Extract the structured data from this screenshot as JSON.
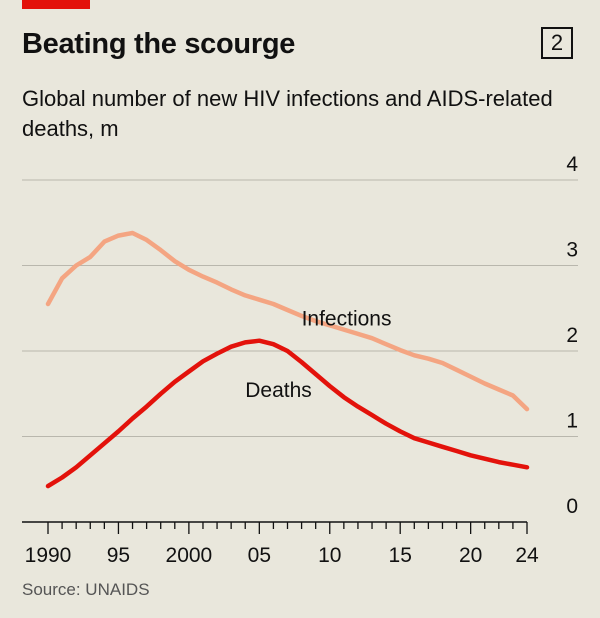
{
  "header": {
    "title": "Beating the scourge",
    "chart_number": "2",
    "subtitle": "Global number of new HIV infections and AIDS-related deaths, m",
    "source": "Source: UNAIDS",
    "accent_color": "#e3120b"
  },
  "chart_data": {
    "type": "line",
    "title": "Beating the scourge",
    "subtitle": "Global number of new HIV infections and AIDS-related deaths, m",
    "xlabel": "",
    "ylabel": "",
    "xlim": [
      1990,
      2024
    ],
    "ylim": [
      0,
      4
    ],
    "x_ticks": [
      1990,
      1995,
      2000,
      2005,
      2010,
      2015,
      2020,
      2024
    ],
    "x_tick_labels": [
      "1990",
      "95",
      "2000",
      "05",
      "10",
      "15",
      "20",
      "24"
    ],
    "y_ticks": [
      0,
      1,
      2,
      3,
      4
    ],
    "y_tick_labels": [
      "0",
      "1",
      "2",
      "3",
      "4"
    ],
    "grid": true,
    "legend": "inline labels",
    "x": [
      1990,
      1991,
      1992,
      1993,
      1994,
      1995,
      1996,
      1997,
      1998,
      1999,
      2000,
      2001,
      2002,
      2003,
      2004,
      2005,
      2006,
      2007,
      2008,
      2009,
      2010,
      2011,
      2012,
      2013,
      2014,
      2015,
      2016,
      2017,
      2018,
      2019,
      2020,
      2021,
      2022,
      2023,
      2024
    ],
    "series": [
      {
        "name": "Infections",
        "color": "#f4a582",
        "values": [
          2.55,
          2.85,
          3.0,
          3.1,
          3.28,
          3.35,
          3.38,
          3.3,
          3.18,
          3.05,
          2.95,
          2.87,
          2.8,
          2.72,
          2.65,
          2.6,
          2.55,
          2.48,
          2.41,
          2.35,
          2.3,
          2.25,
          2.2,
          2.15,
          2.08,
          2.01,
          1.95,
          1.91,
          1.86,
          1.78,
          1.7,
          1.62,
          1.55,
          1.48,
          1.32
        ]
      },
      {
        "name": "Deaths",
        "color": "#e3120b",
        "values": [
          0.42,
          0.52,
          0.64,
          0.78,
          0.92,
          1.06,
          1.21,
          1.35,
          1.5,
          1.64,
          1.76,
          1.88,
          1.97,
          2.05,
          2.1,
          2.12,
          2.08,
          2.0,
          1.87,
          1.73,
          1.59,
          1.46,
          1.35,
          1.25,
          1.15,
          1.06,
          0.98,
          0.93,
          0.88,
          0.83,
          0.78,
          0.74,
          0.7,
          0.67,
          0.64
        ]
      }
    ]
  }
}
